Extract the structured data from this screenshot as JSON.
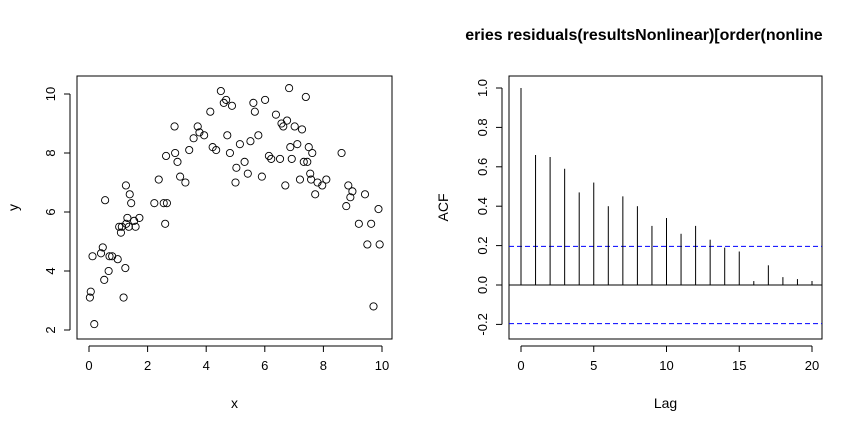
{
  "chart_data": [
    {
      "type": "scatter",
      "title": "",
      "xlabel": "x",
      "ylabel": "y",
      "xlim": [
        0,
        10
      ],
      "ylim": [
        2,
        10
      ],
      "xticks": [
        0,
        2,
        4,
        6,
        8,
        10
      ],
      "yticks": [
        2,
        4,
        6,
        8,
        10
      ],
      "xtick_labels": [
        "0",
        "2",
        "4",
        "6",
        "8",
        "10"
      ],
      "ytick_labels": [
        "2",
        "4",
        "6",
        "8",
        "10"
      ],
      "marker": "open-circle",
      "grid": false,
      "x": [
        0.03,
        0.06,
        0.12,
        0.18,
        0.41,
        0.47,
        0.52,
        0.55,
        0.67,
        0.7,
        0.79,
        0.98,
        1.03,
        1.09,
        1.12,
        1.18,
        1.24,
        1.26,
        1.27,
        1.31,
        1.36,
        1.39,
        1.44,
        1.54,
        1.59,
        1.72,
        2.23,
        2.38,
        2.55,
        2.6,
        2.63,
        2.66,
        2.92,
        2.94,
        3.02,
        3.11,
        3.29,
        3.42,
        3.57,
        3.71,
        3.77,
        3.93,
        4.14,
        4.22,
        4.34,
        4.5,
        4.6,
        4.68,
        4.72,
        4.81,
        4.88,
        5.0,
        5.03,
        5.15,
        5.31,
        5.42,
        5.51,
        5.61,
        5.66,
        5.78,
        5.9,
        6.01,
        6.14,
        6.22,
        6.38,
        6.52,
        6.57,
        6.63,
        6.7,
        6.76,
        6.83,
        6.87,
        6.92,
        7.02,
        7.11,
        7.2,
        7.27,
        7.33,
        7.4,
        7.45,
        7.5,
        7.55,
        7.58,
        7.62,
        7.72,
        7.8,
        7.96,
        8.1,
        8.62,
        8.78,
        8.85,
        8.92,
        8.99,
        9.21,
        9.42,
        9.5,
        9.63,
        9.71,
        9.88,
        9.92
      ],
      "y": [
        3.1,
        3.3,
        4.5,
        2.2,
        4.6,
        4.8,
        3.7,
        6.4,
        4.0,
        4.5,
        4.5,
        4.4,
        5.5,
        5.3,
        5.5,
        3.1,
        4.1,
        6.9,
        5.6,
        5.8,
        5.5,
        6.6,
        6.3,
        5.7,
        5.5,
        5.8,
        6.3,
        7.1,
        6.3,
        5.6,
        7.9,
        6.3,
        8.9,
        8.0,
        7.7,
        7.2,
        7.0,
        8.1,
        8.5,
        8.9,
        8.7,
        8.6,
        9.4,
        8.2,
        8.1,
        10.1,
        9.7,
        9.8,
        8.6,
        8.0,
        9.6,
        7.0,
        7.5,
        8.3,
        7.7,
        7.3,
        8.4,
        9.7,
        9.4,
        8.6,
        7.2,
        9.8,
        7.9,
        7.8,
        9.3,
        7.8,
        9.0,
        8.9,
        6.9,
        9.1,
        10.2,
        8.2,
        7.8,
        8.9,
        8.3,
        7.1,
        8.8,
        7.7,
        9.9,
        7.7,
        8.2,
        7.3,
        7.1,
        8.0,
        6.6,
        7.0,
        6.9,
        7.1,
        8.0,
        6.2,
        6.9,
        6.5,
        6.7,
        5.6,
        6.6,
        4.9,
        5.6,
        2.8,
        6.1,
        4.9
      ]
    },
    {
      "type": "bar",
      "title": "eries  residuals(resultsNonlinear)[order(nonline",
      "xlabel": "Lag",
      "ylabel": "ACF",
      "xlim": [
        0,
        20
      ],
      "ylim": [
        -0.2,
        1.0
      ],
      "xticks": [
        0,
        5,
        10,
        15,
        20
      ],
      "yticks": [
        -0.2,
        0.0,
        0.2,
        0.4,
        0.6,
        0.8,
        1.0
      ],
      "xtick_labels": [
        "0",
        "5",
        "10",
        "15",
        "20"
      ],
      "ytick_labels": [
        "-0.2",
        "0.0",
        "0.2",
        "0.4",
        "0.6",
        "0.8",
        "1.0"
      ],
      "grid": false,
      "categories": [
        0,
        1,
        2,
        3,
        4,
        5,
        6,
        7,
        8,
        9,
        10,
        11,
        12,
        13,
        14,
        15,
        16,
        17,
        18,
        19,
        20
      ],
      "values": [
        1.0,
        0.66,
        0.65,
        0.59,
        0.47,
        0.52,
        0.4,
        0.45,
        0.4,
        0.3,
        0.34,
        0.26,
        0.3,
        0.23,
        0.19,
        0.17,
        0.02,
        0.1,
        0.04,
        0.03,
        0.02
      ],
      "confidence_bounds": [
        0.196,
        -0.196
      ],
      "bound_color": "#0000ff"
    }
  ]
}
